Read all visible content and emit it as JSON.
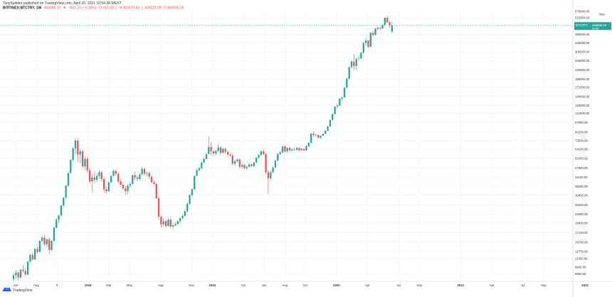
{
  "header": {
    "line1": "TonySpilotro published on TradingView.com, April 20, 2021 10:54:38 WEST",
    "symbol": "BITFINEX:BTCTRY, 1W",
    "price": "456656.15",
    "arrow": "▼",
    "change": "−831.25 (−0.18%)",
    "open": "O:413115.1",
    "high": "H:483470.43",
    "low": "L:403221.09",
    "close": "C:456656.15"
  },
  "price_label": {
    "symbol": "BTCTRY",
    "value": "456656.15",
    "sub": "6d 9h"
  },
  "currency_label": "TRY",
  "logo": {
    "text": "TradingView"
  },
  "colors": {
    "up": "#26a69a",
    "down": "#ef5350",
    "grid": "#e6f0f4",
    "axis_text": "#333333",
    "price_line": "#26a69a"
  },
  "chart_data": {
    "type": "candlestick",
    "timeframe": "1W",
    "y_scale": "log",
    "ylim": [
      7900,
      570000
    ],
    "y_ticks": [
      8900,
      9900,
      11300,
      12700,
      14700,
      17100,
      19900,
      22900,
      26500,
      30900,
      35500,
      41100,
      47500,
      55300,
      64200,
      73500,
      84200,
      97800,
      113000,
      128000,
      148000,
      171000,
      195000,
      225000,
      260000,
      300000,
      345000,
      395000,
      450000,
      515000,
      570000
    ],
    "y_tick_labels": [
      "8900.00",
      "9900.00",
      "11300.00",
      "12700.00",
      "14700.00",
      "17100.00",
      "19900.00",
      "22900.00",
      "26500.00",
      "30900.00",
      "35500.00",
      "41100.00",
      "47500.00",
      "55300.00",
      "64200.00",
      "73500.00",
      "84200.00",
      "97800.00",
      "113000.00",
      "128000.00",
      "148000.00",
      "171000.00",
      "195000.00",
      "225000.00",
      "260000.00",
      "300000.00",
      "345000.00",
      "395000.00",
      "450000.00",
      "515000.00",
      "570000.00"
    ],
    "x_tick_labels": [
      "Jun",
      "Aug",
      "9",
      "2018",
      "Mar",
      "May",
      "Aug",
      "Nov",
      "2019",
      "Apr",
      "Jun",
      "Aug",
      "Oct",
      "2020",
      "Apr",
      "Jul",
      "Sep",
      "2021",
      "Apr",
      "Jul",
      "Sep",
      "2022"
    ],
    "x_tick_months": [
      5,
      7,
      9,
      12,
      14,
      16,
      19,
      22,
      24,
      27,
      29,
      31,
      33,
      36,
      39,
      42,
      44,
      48,
      51,
      54,
      56,
      60
    ],
    "first_bar_month": 4.8,
    "last_price": 456656.15,
    "candles": [
      [
        8200,
        9000,
        7900,
        8700
      ],
      [
        8700,
        9400,
        8300,
        9100
      ],
      [
        9100,
        9300,
        8000,
        8400
      ],
      [
        8400,
        9600,
        8300,
        9500
      ],
      [
        9500,
        10200,
        9100,
        9300
      ],
      [
        9300,
        9800,
        8600,
        8800
      ],
      [
        8800,
        11000,
        8700,
        10800
      ],
      [
        10800,
        12200,
        10500,
        12000
      ],
      [
        12000,
        12500,
        10900,
        11200
      ],
      [
        11200,
        13400,
        11000,
        13200
      ],
      [
        13200,
        13800,
        12300,
        12600
      ],
      [
        12600,
        15200,
        12500,
        15000
      ],
      [
        15000,
        16200,
        14700,
        15800
      ],
      [
        15800,
        16500,
        13800,
        14200
      ],
      [
        14200,
        15600,
        13500,
        15400
      ],
      [
        15400,
        15900,
        12200,
        13000
      ],
      [
        13000,
        15200,
        12800,
        15000
      ],
      [
        15000,
        18800,
        14800,
        18500
      ],
      [
        18500,
        21500,
        18200,
        21000
      ],
      [
        21000,
        22800,
        19800,
        22400
      ],
      [
        22400,
        26600,
        22000,
        26300
      ],
      [
        26300,
        30200,
        25700,
        29700
      ],
      [
        29700,
        36500,
        29000,
        36000
      ],
      [
        36000,
        44500,
        35500,
        44000
      ],
      [
        44000,
        54800,
        43500,
        54200
      ],
      [
        54200,
        66500,
        53000,
        65000
      ],
      [
        65000,
        76500,
        59000,
        73500
      ],
      [
        73500,
        75500,
        52000,
        59000
      ],
      [
        59000,
        64000,
        51000,
        62000
      ],
      [
        62000,
        63500,
        47500,
        49000
      ],
      [
        49000,
        57000,
        46000,
        55000
      ],
      [
        55000,
        57000,
        44000,
        46000
      ],
      [
        46000,
        48000,
        37000,
        38500
      ],
      [
        38500,
        43000,
        32500,
        41000
      ],
      [
        41000,
        44500,
        37500,
        39500
      ],
      [
        39500,
        44000,
        38000,
        42000
      ],
      [
        42000,
        46000,
        40500,
        44500
      ],
      [
        44500,
        45500,
        38500,
        40000
      ],
      [
        40000,
        41000,
        32000,
        34000
      ],
      [
        34000,
        35500,
        31500,
        33000
      ],
      [
        33000,
        38500,
        32500,
        38000
      ],
      [
        38000,
        42500,
        37500,
        42000
      ],
      [
        42000,
        46500,
        41500,
        45500
      ],
      [
        45500,
        46500,
        42000,
        43500
      ],
      [
        43500,
        44500,
        37500,
        38500
      ],
      [
        38500,
        40500,
        35500,
        36500
      ],
      [
        36500,
        38000,
        33500,
        34500
      ],
      [
        34500,
        36000,
        31000,
        33000
      ],
      [
        33000,
        37000,
        31500,
        36000
      ],
      [
        36000,
        38500,
        34500,
        37000
      ],
      [
        37000,
        43000,
        36500,
        42500
      ],
      [
        42500,
        45000,
        39500,
        41000
      ],
      [
        41000,
        42500,
        38500,
        40000
      ],
      [
        40000,
        44000,
        39000,
        43000
      ],
      [
        43000,
        48500,
        42500,
        47000
      ],
      [
        47000,
        48000,
        42000,
        43500
      ],
      [
        43500,
        45000,
        41500,
        44000
      ],
      [
        44000,
        45000,
        40000,
        41500
      ],
      [
        41500,
        42000,
        37500,
        38000
      ],
      [
        38000,
        39000,
        36500,
        37000
      ],
      [
        37000,
        37500,
        29000,
        29500
      ],
      [
        29500,
        30500,
        21000,
        22000
      ],
      [
        22000,
        22500,
        18500,
        19500
      ],
      [
        19500,
        21500,
        19000,
        20500
      ],
      [
        20500,
        21000,
        18500,
        19000
      ],
      [
        19000,
        21500,
        18800,
        21000
      ],
      [
        21000,
        22000,
        18200,
        18800
      ],
      [
        18800,
        19800,
        18000,
        19200
      ],
      [
        19200,
        20200,
        19000,
        19600
      ],
      [
        19600,
        20800,
        19400,
        20500
      ],
      [
        20500,
        21800,
        20000,
        21500
      ],
      [
        21500,
        22800,
        21000,
        22300
      ],
      [
        22300,
        24500,
        22000,
        24000
      ],
      [
        24000,
        27500,
        23500,
        27000
      ],
      [
        27000,
        31500,
        26500,
        31000
      ],
      [
        31000,
        34500,
        30500,
        34000
      ],
      [
        34000,
        42500,
        33500,
        42000
      ],
      [
        42000,
        47000,
        41500,
        46000
      ],
      [
        46000,
        48500,
        45000,
        47500
      ],
      [
        47500,
        52500,
        46500,
        52000
      ],
      [
        52000,
        56500,
        51000,
        55000
      ],
      [
        55000,
        60500,
        54000,
        59500
      ],
      [
        59500,
        79000,
        59000,
        66500
      ],
      [
        66500,
        72000,
        58000,
        62000
      ],
      [
        62000,
        63500,
        57500,
        60000
      ],
      [
        60000,
        63500,
        58000,
        62500
      ],
      [
        62500,
        69000,
        61500,
        66000
      ],
      [
        66000,
        67500,
        58500,
        60500
      ],
      [
        60500,
        66000,
        60000,
        64500
      ],
      [
        64500,
        65500,
        59500,
        61500
      ],
      [
        61500,
        62500,
        57500,
        59000
      ],
      [
        59000,
        60500,
        56500,
        58000
      ],
      [
        58000,
        59500,
        49500,
        51000
      ],
      [
        51000,
        54500,
        49000,
        53000
      ],
      [
        53000,
        55500,
        51500,
        54500
      ],
      [
        54500,
        55500,
        47500,
        48500
      ],
      [
        48500,
        51500,
        47000,
        50000
      ],
      [
        50000,
        51000,
        46500,
        47500
      ],
      [
        47500,
        49500,
        46000,
        48500
      ],
      [
        48500,
        51500,
        48000,
        50500
      ],
      [
        50500,
        51000,
        48500,
        49000
      ],
      [
        49000,
        52500,
        48500,
        52000
      ],
      [
        52000,
        57000,
        51500,
        56000
      ],
      [
        56000,
        59500,
        55000,
        58500
      ],
      [
        58500,
        63500,
        58000,
        62000
      ],
      [
        62000,
        64000,
        58500,
        59500
      ],
      [
        59500,
        60500,
        43000,
        44500
      ],
      [
        44500,
        45500,
        31500,
        40500
      ],
      [
        40500,
        45500,
        39500,
        44500
      ],
      [
        44500,
        49000,
        44000,
        48000
      ],
      [
        48000,
        54500,
        47500,
        53500
      ],
      [
        53500,
        60500,
        53000,
        59500
      ],
      [
        59500,
        62500,
        58500,
        61000
      ],
      [
        61000,
        68000,
        60000,
        67000
      ],
      [
        67000,
        68500,
        60500,
        62000
      ],
      [
        62000,
        66500,
        61000,
        65500
      ],
      [
        65500,
        66500,
        61500,
        63000
      ],
      [
        63000,
        65000,
        62000,
        64000
      ],
      [
        64000,
        65500,
        62500,
        63500
      ],
      [
        63500,
        66500,
        63000,
        65500
      ],
      [
        65500,
        66000,
        62000,
        63000
      ],
      [
        63000,
        65500,
        62500,
        64500
      ],
      [
        64500,
        65000,
        62000,
        63000
      ],
      [
        63000,
        68000,
        62500,
        67500
      ],
      [
        67000,
        72000,
        66500,
        71000
      ],
      [
        71000,
        83000,
        70500,
        82000
      ],
      [
        82000,
        84500,
        78000,
        80000
      ],
      [
        80000,
        81500,
        78500,
        80500
      ],
      [
        80500,
        81000,
        76000,
        77000
      ],
      [
        77000,
        80000,
        75500,
        79500
      ],
      [
        79500,
        82500,
        79000,
        82000
      ],
      [
        82000,
        87000,
        81500,
        86000
      ],
      [
        86000,
        93000,
        85500,
        92000
      ],
      [
        92000,
        103000,
        91500,
        102000
      ],
      [
        102000,
        113000,
        101000,
        112000
      ],
      [
        112000,
        127000,
        111000,
        126000
      ],
      [
        126000,
        132000,
        122000,
        128000
      ],
      [
        128000,
        144000,
        127000,
        143000
      ],
      [
        143000,
        148000,
        138000,
        146000
      ],
      [
        146000,
        172000,
        145000,
        170000
      ],
      [
        170000,
        200000,
        168000,
        196000
      ],
      [
        196000,
        240000,
        194000,
        235000
      ],
      [
        235000,
        262000,
        232000,
        257000
      ],
      [
        257000,
        290000,
        225000,
        240000
      ],
      [
        240000,
        275000,
        225000,
        268000
      ],
      [
        268000,
        285000,
        260000,
        270000
      ],
      [
        270000,
        300000,
        268000,
        296000
      ],
      [
        296000,
        352000,
        292000,
        345000
      ],
      [
        345000,
        375000,
        330000,
        360000
      ],
      [
        360000,
        362000,
        318000,
        325000
      ],
      [
        325000,
        410000,
        322000,
        405000
      ],
      [
        405000,
        420000,
        380000,
        392000
      ],
      [
        392000,
        440000,
        388000,
        432000
      ],
      [
        432000,
        447000,
        420000,
        440000
      ],
      [
        440000,
        445000,
        425000,
        435000
      ],
      [
        435000,
        468000,
        430000,
        460000
      ],
      [
        460000,
        525000,
        455000,
        515000
      ],
      [
        515000,
        530000,
        470000,
        480000
      ],
      [
        480000,
        492000,
        440000,
        457000
      ],
      [
        413115.1,
        483470.43,
        403221.09,
        456656.15
      ]
    ]
  }
}
